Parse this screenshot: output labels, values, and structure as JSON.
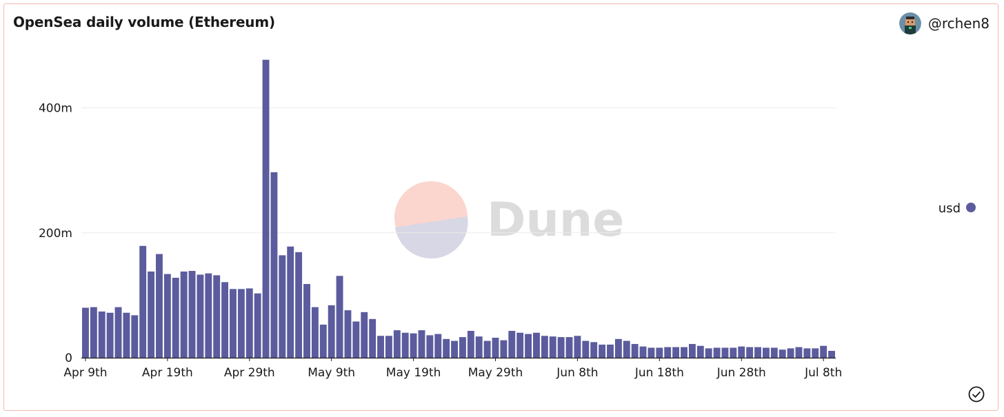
{
  "header": {
    "title": "OpenSea daily volume (Ethereum)",
    "author": "@rchen8"
  },
  "watermark": {
    "text": "Dune"
  },
  "icons": {
    "status": "check-circle-icon",
    "avatar": "pixel-avatar-icon"
  },
  "colors": {
    "bar": "#5b5b9e",
    "border": "#f2b9ad",
    "watermark_top": "#fbd6cf",
    "watermark_bottom": "#d5d5e3"
  },
  "chart_data": {
    "type": "bar",
    "title": "OpenSea daily volume (Ethereum)",
    "xlabel": "",
    "ylabel": "",
    "ylim": [
      0,
      480000000
    ],
    "yticks": [
      {
        "value": 0,
        "label": "0"
      },
      {
        "value": 200000000,
        "label": "200m"
      },
      {
        "value": 400000000,
        "label": "400m"
      }
    ],
    "xticks": [
      {
        "index": 0,
        "label": "Apr 9th"
      },
      {
        "index": 10,
        "label": "Apr 19th"
      },
      {
        "index": 20,
        "label": "Apr 29th"
      },
      {
        "index": 30,
        "label": "May 9th"
      },
      {
        "index": 40,
        "label": "May 19th"
      },
      {
        "index": 50,
        "label": "May 29th"
      },
      {
        "index": 60,
        "label": "Jun 8th"
      },
      {
        "index": 70,
        "label": "Jun 18th"
      },
      {
        "index": 80,
        "label": "Jun 28th"
      },
      {
        "index": 90,
        "label": "Jul 8th"
      }
    ],
    "legend": {
      "position": "right",
      "entries": [
        "usd"
      ]
    },
    "series": [
      {
        "name": "usd",
        "color": "#5b5b9e",
        "values": [
          80000000,
          81000000,
          74000000,
          72000000,
          81000000,
          72000000,
          68000000,
          179000000,
          138000000,
          166000000,
          134000000,
          128000000,
          138000000,
          139000000,
          133000000,
          135000000,
          132000000,
          121000000,
          110000000,
          110000000,
          111000000,
          103000000,
          477000000,
          297000000,
          164000000,
          178000000,
          169000000,
          118000000,
          81000000,
          53000000,
          84000000,
          131000000,
          76000000,
          58000000,
          73000000,
          62000000,
          35000000,
          35000000,
          44000000,
          40000000,
          39000000,
          44000000,
          36000000,
          38000000,
          30000000,
          27000000,
          33000000,
          43000000,
          34000000,
          27000000,
          32000000,
          28000000,
          43000000,
          40000000,
          38000000,
          40000000,
          35000000,
          34000000,
          33000000,
          33000000,
          35000000,
          27000000,
          25000000,
          21000000,
          21000000,
          30000000,
          27000000,
          22000000,
          18000000,
          16000000,
          16000000,
          17000000,
          17000000,
          17000000,
          22000000,
          19000000,
          15000000,
          16000000,
          16000000,
          16000000,
          18000000,
          17000000,
          17000000,
          16000000,
          16000000,
          13000000,
          15000000,
          17000000,
          15000000,
          15000000,
          19000000,
          11000000
        ]
      }
    ]
  }
}
